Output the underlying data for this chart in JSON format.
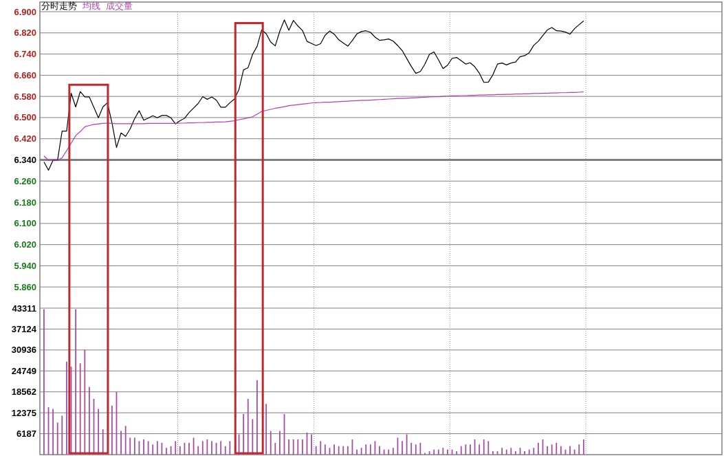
{
  "chart_data": [
    {
      "type": "line",
      "title": "分时走势",
      "legend": "top left",
      "grid": true,
      "categories": [
        null,
        null,
        null,
        null,
        null,
        null,
        null,
        null,
        null,
        null,
        null,
        null,
        null,
        null,
        null,
        null,
        null,
        null,
        null,
        null,
        null,
        null,
        null,
        null,
        null,
        null,
        null,
        null,
        null,
        null,
        null,
        null,
        null,
        null,
        null,
        null,
        null,
        null,
        null,
        null,
        null,
        null,
        null,
        null,
        null,
        null,
        null,
        null,
        null,
        null,
        null,
        null,
        null,
        null,
        null,
        null,
        null,
        null,
        null,
        null,
        null,
        null,
        null,
        null,
        null,
        null,
        null,
        null,
        null,
        null,
        null,
        null,
        null,
        null,
        null,
        null,
        null,
        null,
        null,
        null,
        null,
        null,
        null,
        null,
        null,
        null,
        null,
        null,
        null,
        null,
        null,
        null,
        null,
        null,
        null,
        null,
        null,
        null,
        null,
        null,
        null,
        null,
        null,
        null,
        null,
        null,
        null,
        null,
        null,
        null,
        null,
        null,
        null,
        null,
        null,
        null,
        null,
        null,
        null,
        null,
        null,
        null,
        null,
        null,
        null,
        null,
        null,
        null,
        null,
        null,
        null,
        null,
        null,
        null,
        null,
        null,
        null,
        null,
        null,
        null,
        null,
        null,
        null,
        null,
        null,
        null,
        null,
        null,
        null,
        null
      ],
      "ylim": [
        5.78,
        6.9
      ],
      "yticks": [
        {
          "value": 5.86,
          "label": "5.860"
        },
        {
          "value": 5.94,
          "label": "5.940"
        },
        {
          "value": 6.02,
          "label": "6.020"
        },
        {
          "value": 6.1,
          "label": "6.100"
        },
        {
          "value": 6.18,
          "label": "6.180"
        },
        {
          "value": 6.26,
          "label": "6.260"
        },
        {
          "value": 6.34,
          "label": "6.340"
        },
        {
          "value": 6.42,
          "label": "6.420"
        },
        {
          "value": 6.5,
          "label": "6.500"
        },
        {
          "value": 6.58,
          "label": "6.580"
        },
        {
          "value": 6.66,
          "label": "6.660"
        },
        {
          "value": 6.74,
          "label": "6.740"
        },
        {
          "value": 6.82,
          "label": "6.820"
        },
        {
          "value": 6.9,
          "label": "6.900"
        }
      ],
      "ref_lines": [
        {
          "axis": "y",
          "value": 6.34,
          "color": "#808080"
        }
      ],
      "series": [
        {
          "color": "#000000",
          "values": [
            6.332,
            6.301,
            6.339,
            6.339,
            6.449,
            6.449,
            6.592,
            6.54,
            6.598,
            6.578,
            6.578,
            6.539,
            6.499,
            6.54,
            6.556,
            6.48,
            6.387,
            6.442,
            6.429,
            6.457,
            6.496,
            6.526,
            6.49,
            6.498,
            6.507,
            6.499,
            6.508,
            6.508,
            6.499,
            6.476,
            6.488,
            6.497,
            6.519,
            6.536,
            6.553,
            6.579,
            6.569,
            6.578,
            6.566,
            6.539,
            6.539,
            6.556,
            6.57,
            6.606,
            6.68,
            6.688,
            6.739,
            6.769,
            6.831,
            6.817,
            6.785,
            6.771,
            6.826,
            6.869,
            6.83,
            6.867,
            6.846,
            6.829,
            6.788,
            6.78,
            6.772,
            6.779,
            6.811,
            6.827,
            6.815,
            6.794,
            6.782,
            6.77,
            6.791,
            6.816,
            6.825,
            6.828,
            6.822,
            6.804,
            6.792,
            6.794,
            6.797,
            6.789,
            6.772,
            6.753,
            6.723,
            6.693,
            6.667,
            6.674,
            6.702,
            6.739,
            6.748,
            6.718,
            6.685,
            6.698,
            6.724,
            6.727,
            6.715,
            6.702,
            6.707,
            6.692,
            6.668,
            6.633,
            6.634,
            6.662,
            6.702,
            6.706,
            6.699,
            6.706,
            6.71,
            6.73,
            6.734,
            6.745,
            6.773,
            6.788,
            6.81,
            6.831,
            6.84,
            6.828,
            6.827,
            6.823,
            6.815,
            6.836,
            6.851,
            6.865,
            null,
            null,
            null,
            null,
            null,
            null,
            null,
            null,
            null,
            null,
            null,
            null,
            null,
            null,
            null,
            null,
            null,
            null,
            null,
            null,
            null,
            null,
            null,
            null,
            null,
            null,
            null,
            null,
            null,
            null
          ]
        },
        {
          "name": "均线",
          "color": "#b43cb4",
          "values": [
            6.355,
            6.338,
            6.339,
            6.339,
            6.348,
            6.375,
            6.403,
            6.432,
            6.447,
            6.465,
            6.47,
            6.474,
            6.476,
            6.478,
            6.479,
            6.478,
            6.477,
            6.477,
            6.477,
            6.477,
            6.477,
            6.477,
            6.477,
            6.478,
            6.478,
            6.478,
            6.478,
            6.478,
            6.478,
            6.478,
            6.479,
            6.479,
            6.48,
            6.48,
            6.481,
            6.481,
            6.482,
            6.482,
            6.483,
            6.483,
            6.484,
            6.486,
            6.488,
            6.492,
            6.495,
            6.499,
            6.503,
            6.513,
            6.523,
            6.527,
            6.531,
            6.535,
            6.538,
            6.541,
            6.545,
            6.547,
            6.549,
            6.551,
            6.553,
            6.555,
            6.556,
            6.557,
            6.558,
            6.558,
            6.559,
            6.56,
            6.561,
            6.562,
            6.563,
            6.564,
            6.565,
            6.565,
            6.566,
            6.567,
            6.568,
            6.569,
            6.57,
            6.571,
            6.572,
            6.572,
            6.573,
            6.574,
            6.575,
            6.576,
            6.577,
            6.578,
            6.579,
            6.579,
            6.58,
            6.581,
            6.582,
            6.582,
            6.583,
            6.583,
            6.584,
            6.584,
            6.585,
            6.585,
            6.586,
            6.586,
            6.587,
            6.587,
            6.588,
            6.588,
            6.589,
            6.589,
            6.59,
            6.59,
            6.591,
            6.591,
            6.592,
            6.592,
            6.593,
            6.593,
            6.594,
            6.594,
            6.595,
            6.595,
            6.596,
            6.597,
            null,
            null,
            null,
            null,
            null,
            null,
            null,
            null,
            null,
            null,
            null,
            null,
            null,
            null,
            null,
            null,
            null,
            null,
            null,
            null,
            null,
            null,
            null,
            null,
            null,
            null,
            null,
            null,
            null,
            null
          ]
        }
      ]
    },
    {
      "type": "bar",
      "legend": "top left",
      "grid": true,
      "categories": [
        null,
        null,
        null,
        null,
        null,
        null,
        null,
        null,
        null,
        null,
        null,
        null,
        null,
        null,
        null,
        null,
        null,
        null,
        null,
        null,
        null,
        null,
        null,
        null,
        null,
        null,
        null,
        null,
        null,
        null,
        null,
        null,
        null,
        null,
        null,
        null,
        null,
        null,
        null,
        null,
        null,
        null,
        null,
        null,
        null,
        null,
        null,
        null,
        null,
        null,
        null,
        null,
        null,
        null,
        null,
        null,
        null,
        null,
        null,
        null,
        null,
        null,
        null,
        null,
        null,
        null,
        null,
        null,
        null,
        null,
        null,
        null,
        null,
        null,
        null,
        null,
        null,
        null,
        null,
        null,
        null,
        null,
        null,
        null,
        null,
        null,
        null,
        null,
        null,
        null,
        null,
        null,
        null,
        null,
        null,
        null,
        null,
        null,
        null,
        null,
        null,
        null,
        null,
        null,
        null,
        null,
        null,
        null,
        null,
        null,
        null,
        null,
        null,
        null,
        null,
        null,
        null,
        null,
        null,
        null,
        null,
        null,
        null,
        null,
        null,
        null,
        null,
        null,
        null,
        null,
        null,
        null,
        null,
        null,
        null,
        null,
        null,
        null,
        null,
        null,
        null,
        null,
        null,
        null,
        null,
        null,
        null,
        null,
        null,
        null
      ],
      "ylim": [
        0,
        43311
      ],
      "yticks": [
        6187,
        12375,
        18562,
        24749,
        30936,
        37124,
        43311
      ],
      "series": [
        {
          "name": "成交量",
          "color": "#a84ca8",
          "values": [
            43000,
            14000,
            13500,
            9500,
            11500,
            27500,
            26000,
            43000,
            27000,
            31000,
            20000,
            16500,
            13500,
            7500,
            null,
            14500,
            18500,
            7000,
            8500,
            5000,
            5000,
            4000,
            4500,
            4000,
            3000,
            4000,
            3500,
            2000,
            2500,
            4000,
            2500,
            3500,
            3500,
            5000,
            2500,
            4000,
            4500,
            4000,
            3500,
            4000,
            2500,
            4000,
            null,
            6000,
            12000,
            16500,
            10500,
            22000,
            null,
            15000,
            7000,
            3500,
            7000,
            12000,
            4500,
            4500,
            4500,
            4500,
            6500,
            6000,
            2500,
            4000,
            3000,
            2000,
            3000,
            2500,
            2500,
            2500,
            4500,
            1500,
            2000,
            3000,
            3000,
            4000,
            2500,
            1500,
            1500,
            2000,
            5000,
            4000,
            6000,
            3500,
            3000,
            3500,
            500,
            1000,
            1500,
            1500,
            2000,
            1500,
            1500,
            1000,
            2500,
            3000,
            3000,
            4500,
            3000,
            4500,
            4000,
            1000,
            1000,
            2000,
            1500,
            2000,
            1000,
            2000,
            1000,
            1500,
            2000,
            3500,
            4500,
            2500,
            3000,
            3500,
            2500,
            1500,
            2500,
            1500,
            3000,
            4500,
            null,
            null,
            null,
            null,
            null,
            null,
            null,
            null,
            null,
            null,
            null,
            null,
            null,
            null,
            null,
            null,
            null,
            null,
            null,
            null,
            null,
            null,
            null,
            null,
            null,
            null,
            null,
            null,
            null,
            null
          ]
        }
      ]
    }
  ]
}
